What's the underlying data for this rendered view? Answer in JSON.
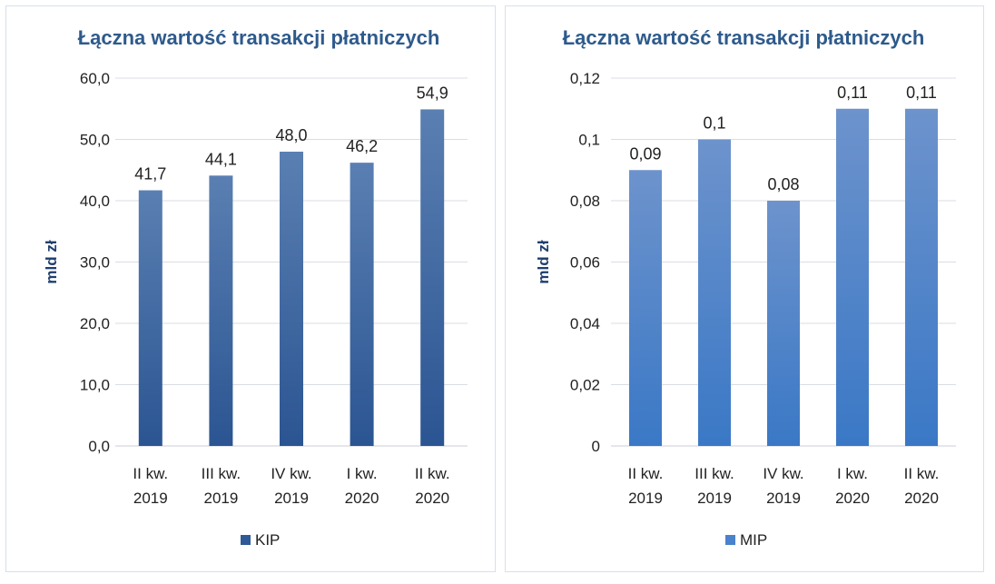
{
  "chart_data": [
    {
      "type": "bar",
      "title": "Łączna wartość transakcji płatniczych",
      "ylabel": "mld zł",
      "xlabel": "",
      "categories": [
        [
          "II kw.",
          "2019"
        ],
        [
          "III kw.",
          "2019"
        ],
        [
          "IV kw.",
          "2019"
        ],
        [
          "I kw.",
          "2020"
        ],
        [
          "II kw.",
          "2020"
        ]
      ],
      "series": [
        {
          "name": "KIP",
          "values": [
            41.7,
            44.1,
            48.0,
            46.2,
            54.9
          ]
        }
      ],
      "value_labels": [
        "41,7",
        "44,1",
        "48,0",
        "46,2",
        "54,9"
      ],
      "ylim": [
        0,
        60
      ],
      "yticks": [
        "0,0",
        "10,0",
        "20,0",
        "30,0",
        "40,0",
        "50,0",
        "60,0"
      ],
      "grid": true,
      "legend_position": "bottom",
      "colors": {
        "bar_top": "#5a7fb2",
        "bar_bottom": "#2b5592",
        "legend": "#2f5a97"
      }
    },
    {
      "type": "bar",
      "title": "Łączna wartość transakcji płatniczych",
      "ylabel": "mld zł",
      "xlabel": "",
      "categories": [
        [
          "II kw.",
          "2019"
        ],
        [
          "III kw.",
          "2019"
        ],
        [
          "IV kw.",
          "2019"
        ],
        [
          "I kw.",
          "2020"
        ],
        [
          "II kw.",
          "2020"
        ]
      ],
      "series": [
        {
          "name": "MIP",
          "values": [
            0.09,
            0.1,
            0.08,
            0.11,
            0.11
          ]
        }
      ],
      "value_labels": [
        "0,09",
        "0,1",
        "0,08",
        "0,11",
        "0,11"
      ],
      "ylim": [
        0,
        0.12
      ],
      "yticks": [
        "0",
        "0,02",
        "0,04",
        "0,06",
        "0,08",
        "0,1",
        "0,12"
      ],
      "grid": true,
      "legend_position": "bottom",
      "colors": {
        "bar_top": "#6d93cc",
        "bar_bottom": "#3a78c6",
        "legend": "#4a82cc"
      }
    }
  ]
}
